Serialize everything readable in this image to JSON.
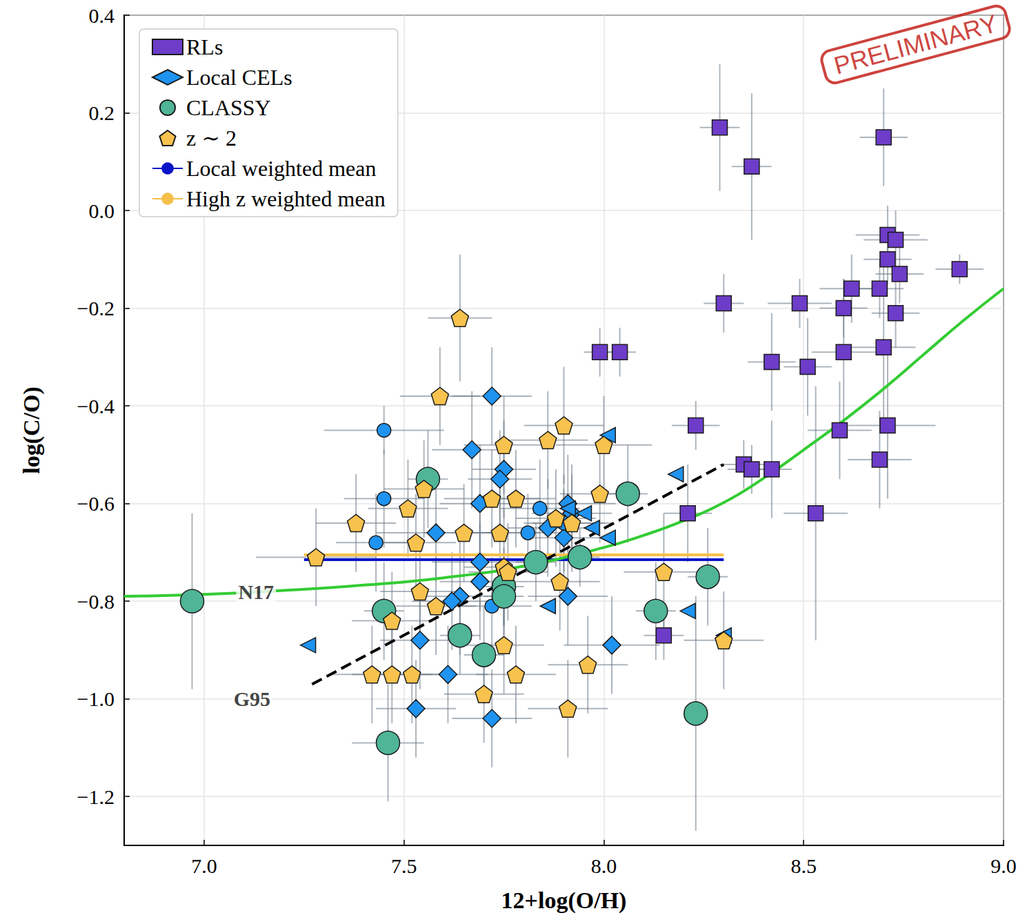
{
  "chart_data": {
    "type": "scatter",
    "x_label": "12+log(O/H)",
    "y_label": "log(C/O)",
    "xlim": [
      6.8,
      9.0
    ],
    "ylim": [
      -1.3,
      0.4
    ],
    "xticks": [
      {
        "value": 7.0,
        "label": "7.0"
      },
      7.5,
      {
        "value": 8.0,
        "label": "8.0"
      },
      8.5,
      {
        "value": 9.0,
        "label": "9.0"
      }
    ],
    "yticks": [
      {
        "value": -1.2,
        "label": "−1.2"
      },
      {
        "value": -1.0,
        "label": "−1.0"
      },
      {
        "value": -0.8,
        "label": "−0.8"
      },
      {
        "value": -0.6,
        "label": "−0.6"
      },
      {
        "value": -0.4,
        "label": "−0.4"
      },
      {
        "value": -0.2,
        "label": "−0.2"
      },
      {
        "value": 0.0,
        "label": "0.0"
      },
      0.2,
      0.4
    ],
    "grid": true,
    "legend": "upper left",
    "series": [
      {
        "type": "scatter",
        "name": "RLs",
        "color": "#6d3cc8",
        "marker": "square",
        "x": [
          8.29,
          8.37,
          8.7,
          8.71,
          8.73,
          8.71,
          8.74,
          8.89,
          8.3,
          8.49,
          8.6,
          8.62,
          8.69,
          8.73,
          7.99,
          8.04,
          8.42,
          8.51,
          8.6,
          8.7,
          8.23,
          8.71,
          8.59,
          8.35,
          8.37,
          8.42,
          8.69,
          8.21,
          8.53,
          8.15
        ],
        "y": [
          0.17,
          0.09,
          0.15,
          -0.05,
          -0.06,
          -0.1,
          -0.13,
          -0.12,
          -0.19,
          -0.19,
          -0.2,
          -0.16,
          -0.16,
          -0.21,
          -0.29,
          -0.29,
          -0.31,
          -0.32,
          -0.29,
          -0.28,
          -0.44,
          -0.44,
          -0.45,
          -0.52,
          -0.53,
          -0.53,
          -0.51,
          -0.62,
          -0.62,
          -0.87
        ],
        "xerr": [
          0.05,
          0.05,
          0.06,
          0.08,
          0.08,
          0.06,
          0.06,
          0.06,
          0.05,
          0.08,
          0.06,
          0.08,
          0.06,
          0.06,
          0.04,
          0.04,
          0.06,
          0.06,
          0.08,
          0.08,
          0.06,
          0.12,
          0.08,
          0.06,
          0.06,
          0.05,
          0.08,
          0.06,
          0.08,
          0.05
        ],
        "yerr": [
          0.13,
          0.15,
          0.1,
          0.06,
          0.06,
          0.05,
          0.06,
          0.03,
          0.06,
          0.05,
          0.06,
          0.07,
          0.06,
          0.07,
          0.05,
          0.05,
          0.1,
          0.1,
          0.15,
          0.17,
          0.05,
          0.15,
          0.1,
          0.05,
          0.05,
          0.1,
          0.1,
          0.1,
          0.26,
          0.05
        ]
      },
      {
        "type": "scatter",
        "name": "Local CELs",
        "color": "#1f93f0",
        "marker": "diamond",
        "x": [
          7.72,
          7.67,
          7.75,
          7.74,
          7.69,
          7.91,
          7.86,
          7.58,
          7.92,
          7.9,
          7.69,
          7.69,
          7.64,
          7.62,
          7.91,
          7.54,
          7.61,
          8.02,
          7.53,
          7.72
        ],
        "y": [
          -0.38,
          -0.49,
          -0.53,
          -0.55,
          -0.6,
          -0.6,
          -0.65,
          -0.66,
          -0.62,
          -0.67,
          -0.72,
          -0.76,
          -0.79,
          -0.8,
          -0.79,
          -0.88,
          -0.95,
          -0.89,
          -1.02,
          -1.04
        ],
        "xerr": [
          0.1,
          0.1,
          0.08,
          0.08,
          0.1,
          0.12,
          0.1,
          0.15,
          0.1,
          0.1,
          0.12,
          0.1,
          0.1,
          0.1,
          0.1,
          0.1,
          0.1,
          0.12,
          0.1,
          0.1
        ],
        "yerr": [
          0.1,
          0.12,
          0.1,
          0.1,
          0.12,
          0.1,
          0.1,
          0.1,
          0.1,
          0.1,
          0.1,
          0.12,
          0.12,
          0.1,
          0.1,
          0.1,
          0.1,
          0.1,
          0.1,
          0.1
        ]
      },
      {
        "type": "scatter",
        "color": "#1f93f0",
        "marker": "dot",
        "x": [
          7.45,
          7.45,
          7.43,
          7.84,
          7.81,
          7.72,
          7.9
        ],
        "y": [
          -0.45,
          -0.59,
          -0.68,
          -0.61,
          -0.66,
          -0.81,
          -0.64
        ],
        "xerr": [
          0.15,
          0.1,
          0.1,
          0.1,
          0.1,
          0.1,
          0.1
        ],
        "yerr": [
          0.05,
          0.1,
          0.1,
          0.1,
          0.08,
          0.1,
          0.1
        ]
      },
      {
        "type": "scatter",
        "color": "#1f93f0",
        "marker": "triangle_left",
        "x": [
          7.26,
          8.01,
          8.18,
          7.95,
          8.01,
          7.91,
          7.97,
          7.86,
          8.21,
          8.3
        ],
        "y": [
          -0.89,
          -0.46,
          -0.54,
          -0.62,
          -0.67,
          -0.61,
          -0.65,
          -0.81,
          -0.82,
          -0.87
        ]
      },
      {
        "type": "scatter",
        "name": "CLASSY",
        "color": "#4fb596",
        "marker": "circle",
        "x": [
          6.97,
          7.56,
          8.06,
          7.83,
          7.94,
          7.75,
          7.75,
          7.45,
          7.64,
          7.7,
          8.13,
          8.26,
          7.46,
          8.23
        ],
        "y": [
          -0.8,
          -0.55,
          -0.58,
          -0.72,
          -0.71,
          -0.77,
          -0.79,
          -0.82,
          -0.87,
          -0.91,
          -0.82,
          -0.75,
          -1.09,
          -1.03
        ],
        "xerr": [
          0.02,
          0.05,
          0.05,
          0.05,
          0.05,
          0.05,
          0.05,
          0.05,
          0.05,
          0.05,
          0.05,
          0.05,
          0.09,
          0.03
        ],
        "yerr": [
          0.18,
          0.1,
          0.1,
          0.08,
          0.06,
          0.08,
          0.08,
          0.1,
          0.08,
          0.1,
          0.1,
          0.1,
          0.12,
          0.24
        ]
      },
      {
        "type": "scatter",
        "name": "z ∼ 2",
        "color": "#f8c24e",
        "marker": "pentagon",
        "x": [
          7.64,
          7.59,
          7.9,
          7.86,
          8.0,
          7.75,
          7.55,
          7.51,
          7.38,
          7.78,
          7.72,
          7.99,
          7.53,
          7.65,
          7.74,
          7.88,
          7.92,
          7.28,
          7.75,
          7.76,
          7.54,
          8.15,
          7.89,
          7.58,
          7.47,
          7.75,
          7.96,
          7.42,
          7.47,
          7.52,
          7.78,
          7.7,
          7.91,
          8.3
        ],
        "y": [
          -0.22,
          -0.38,
          -0.44,
          -0.47,
          -0.48,
          -0.48,
          -0.57,
          -0.61,
          -0.64,
          -0.59,
          -0.59,
          -0.58,
          -0.68,
          -0.66,
          -0.66,
          -0.63,
          -0.64,
          -0.71,
          -0.73,
          -0.74,
          -0.78,
          -0.74,
          -0.76,
          -0.81,
          -0.84,
          -0.89,
          -0.93,
          -0.95,
          -0.95,
          -0.95,
          -0.95,
          -0.99,
          -1.02,
          -0.88
        ],
        "xerr": [
          0.08,
          0.1,
          0.1,
          0.1,
          0.12,
          0.1,
          0.1,
          0.1,
          0.1,
          0.1,
          0.12,
          0.1,
          0.1,
          0.1,
          0.1,
          0.1,
          0.1,
          0.15,
          0.1,
          0.1,
          0.1,
          0.1,
          0.1,
          0.1,
          0.1,
          0.1,
          0.1,
          0.1,
          0.1,
          0.1,
          0.1,
          0.1,
          0.1,
          0.1
        ],
        "yerr": [
          0.13,
          0.1,
          0.12,
          0.1,
          0.1,
          0.1,
          0.1,
          0.1,
          0.1,
          0.1,
          0.1,
          0.1,
          0.1,
          0.1,
          0.1,
          0.1,
          0.1,
          0.1,
          0.12,
          0.1,
          0.1,
          0.12,
          0.1,
          0.1,
          0.1,
          0.1,
          0.1,
          0.1,
          0.1,
          0.1,
          0.1,
          0.1,
          0.1,
          0.1
        ]
      },
      {
        "type": "line",
        "name": "Local weighted mean",
        "color": "#0a14c8",
        "x": [
          7.25,
          8.3
        ],
        "y": [
          -0.715,
          -0.715
        ]
      },
      {
        "type": "line",
        "name": "High z weighted mean",
        "color": "#f5c04a",
        "x": [
          7.25,
          8.3
        ],
        "y": [
          -0.705,
          -0.705
        ]
      },
      {
        "type": "line",
        "color": "#33cc33",
        "x": [
          6.8,
          7.0,
          7.2,
          7.4,
          7.6,
          7.8,
          8.0,
          8.1,
          8.2,
          8.3,
          8.4,
          8.5,
          8.6,
          8.7,
          8.8,
          8.9,
          9.0
        ],
        "y": [
          -0.79,
          -0.786,
          -0.778,
          -0.767,
          -0.752,
          -0.728,
          -0.69,
          -0.665,
          -0.635,
          -0.598,
          -0.548,
          -0.49,
          -0.43,
          -0.365,
          -0.295,
          -0.225,
          -0.16
        ]
      },
      {
        "type": "line",
        "color": "#000000",
        "line_style": "dashed",
        "x": [
          7.27,
          8.3
        ],
        "y": [
          -0.97,
          -0.52
        ]
      }
    ],
    "annotations": [
      {
        "text": "N17",
        "x": 7.13,
        "y": -0.78
      },
      {
        "text": "G95",
        "x": 7.12,
        "y": -1.0
      },
      {
        "text": "PRELIMINARY",
        "x": 8.78,
        "y": 0.34,
        "color": "#c0140c"
      }
    ]
  }
}
